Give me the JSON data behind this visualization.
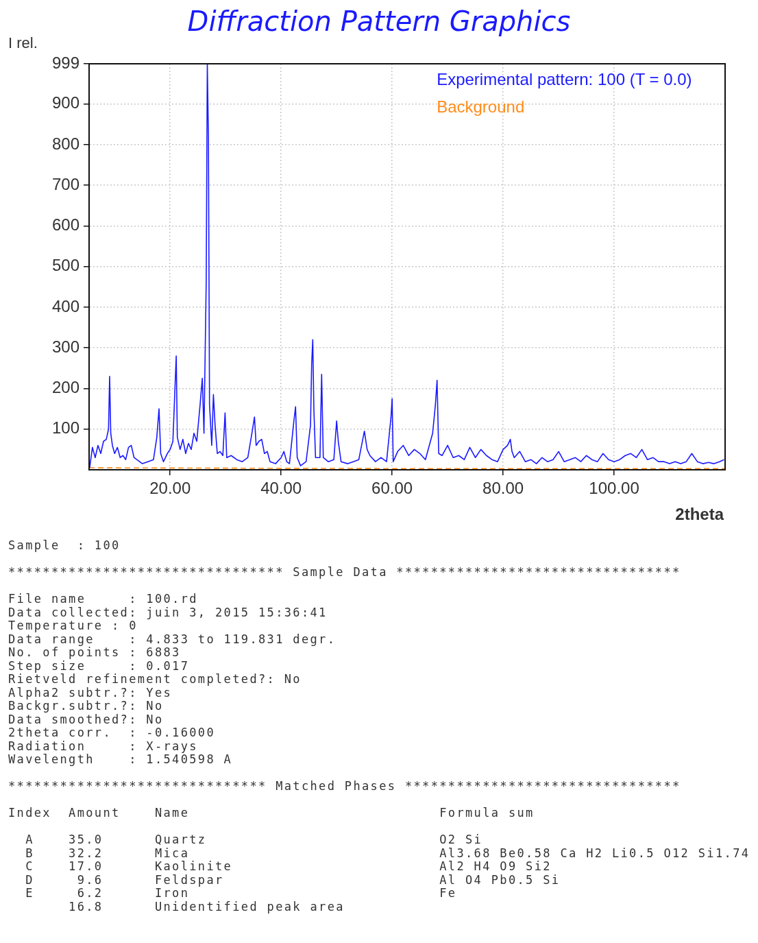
{
  "chart_data": {
    "type": "line",
    "title": "Diffraction Pattern Graphics",
    "xlabel": "2theta",
    "ylabel": "I rel.",
    "xlim": [
      5.4,
      120
    ],
    "ylim": [
      0,
      999
    ],
    "xticks": [
      {
        "value": 20,
        "label": "20.00"
      },
      {
        "value": 40,
        "label": "40.00"
      },
      {
        "value": 60,
        "label": "60.00"
      },
      {
        "value": 80,
        "label": "80.00"
      },
      {
        "value": 100,
        "label": "100.00"
      }
    ],
    "yticks": [
      100,
      200,
      300,
      400,
      500,
      600,
      700,
      800,
      900,
      999
    ],
    "grid": true,
    "legend": "top right",
    "series": [
      {
        "name": "Experimental pattern: 100 (T = 0.0)",
        "color": "#1a1aff",
        "x": [
          5.5,
          6,
          6.5,
          7,
          7.5,
          8,
          8.5,
          8.9,
          9.1,
          9.3,
          9.6,
          10,
          10.5,
          11,
          11.5,
          12,
          12.5,
          13,
          13.5,
          14,
          15,
          16,
          17,
          17.6,
          18,
          18.3,
          18.8,
          19.5,
          20,
          20.5,
          20.9,
          21.1,
          21.3,
          21.8,
          22.3,
          22.8,
          23.3,
          23.8,
          24.3,
          24.8,
          25.4,
          25.8,
          26.1,
          26.5,
          26.7,
          26.9,
          27.1,
          27.5,
          27.8,
          28.1,
          28.5,
          29,
          29.5,
          29.9,
          30.2,
          31,
          32,
          33,
          34,
          34.8,
          35.2,
          35.5,
          36,
          36.5,
          37,
          37.5,
          38,
          39,
          40,
          40.5,
          41,
          41.5,
          42.3,
          42.6,
          42.9,
          43.5,
          44.5,
          45.3,
          45.5,
          45.7,
          45.9,
          46.2,
          47,
          47.3,
          47.6,
          48.5,
          49.5,
          50,
          50.3,
          50.8,
          52,
          53,
          54,
          55,
          55.5,
          56,
          57,
          58,
          59,
          59.8,
          60,
          60.2,
          61,
          62,
          63,
          64,
          65,
          66,
          67.3,
          67.8,
          68.1,
          68.4,
          69,
          70,
          71,
          72,
          73,
          74,
          75,
          76,
          77,
          78,
          79,
          80,
          80.8,
          81.3,
          81.6,
          82,
          83,
          84,
          85,
          86,
          87,
          88,
          89,
          90,
          91,
          92,
          93,
          94,
          95,
          96,
          97,
          98,
          99,
          100,
          101,
          102,
          103,
          104,
          105,
          106,
          107,
          108,
          109,
          110,
          111,
          112,
          113,
          114,
          115,
          116,
          117,
          118,
          119,
          119.8
        ],
        "values": [
          5,
          55,
          30,
          60,
          40,
          70,
          75,
          100,
          230,
          90,
          60,
          40,
          55,
          30,
          35,
          25,
          55,
          60,
          30,
          25,
          15,
          20,
          25,
          80,
          150,
          40,
          20,
          40,
          50,
          70,
          210,
          280,
          80,
          50,
          75,
          40,
          65,
          50,
          90,
          70,
          160,
          225,
          90,
          460,
          999,
          820,
          160,
          60,
          185,
          110,
          40,
          45,
          35,
          140,
          30,
          35,
          25,
          20,
          30,
          95,
          130,
          60,
          70,
          75,
          40,
          45,
          20,
          15,
          30,
          45,
          20,
          15,
          120,
          155,
          30,
          10,
          20,
          110,
          260,
          320,
          150,
          30,
          30,
          235,
          30,
          20,
          25,
          120,
          70,
          20,
          15,
          20,
          25,
          95,
          50,
          35,
          20,
          30,
          20,
          130,
          175,
          20,
          45,
          60,
          35,
          50,
          40,
          25,
          90,
          160,
          220,
          40,
          35,
          60,
          30,
          35,
          25,
          55,
          30,
          50,
          35,
          25,
          20,
          50,
          60,
          75,
          45,
          30,
          45,
          20,
          25,
          15,
          30,
          20,
          25,
          45,
          20,
          25,
          30,
          20,
          35,
          25,
          20,
          40,
          25,
          20,
          25,
          35,
          40,
          30,
          50,
          25,
          30,
          20,
          20,
          15,
          20,
          15,
          20,
          40,
          20,
          15,
          18,
          15,
          20,
          25
        ]
      },
      {
        "name": "Background",
        "color": "#ff8c1a",
        "line_style": "dashed",
        "x": [
          5.4,
          30,
          60,
          90,
          120
        ],
        "values": [
          5,
          4,
          3,
          3,
          3
        ]
      }
    ],
    "annotations": [
      "Sample  : 100",
      "******************************** Sample Data *********************************",
      "File name     : 100.rd\nData collected: juin 3, 2015 15:36:41\nTemperature : 0\nData range    : 4.833 to 119.831 degr.\nNo. of points : 6883\nStep size     : 0.017\nRietveld refinement completed?: No\nAlpha2 subtr.?: Yes\nBackgr.subtr.?: No\nData smoothed?: No\n2theta corr.  : -0.16000\nRadiation     : X-rays\nWavelength    : 1.540598 A",
      "****************************** Matched Phases ********************************",
      "Index  Amount    Name                             Formula sum\n\n  A    35.0      Quartz                           O2 Si\n  B    32.2      Mica                             Al3.68 Be0.58 Ca H2 Li0.5 O12 Si1.74\n  C    17.0      Kaolinite                        Al2 H4 O9 Si2\n  D     9.6      Feldspar                         Al O4 Pb0.5 Si\n  E     6.2      Iron                             Fe\n       16.8      Unidentified peak area"
    ]
  }
}
